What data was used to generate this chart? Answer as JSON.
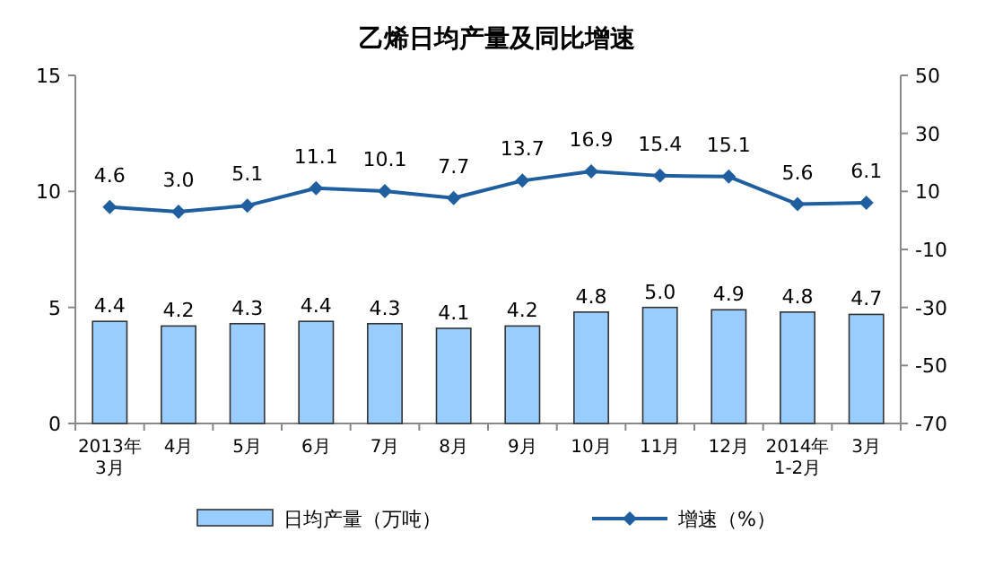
{
  "chart_data": {
    "type": "bar",
    "title": "乙烯日均产量及同比增速",
    "categories": [
      "2013年\n3月",
      "4月",
      "5月",
      "6月",
      "7月",
      "8月",
      "9月",
      "10月",
      "11月",
      "12月",
      "2014年\n1-2月",
      "3月"
    ],
    "series": [
      {
        "name": "日均产量（万吨）",
        "color": "#99ccff",
        "values": [
          4.4,
          4.2,
          4.3,
          4.4,
          4.3,
          4.1,
          4.2,
          4.8,
          5.0,
          4.9,
          4.8,
          4.7
        ],
        "value_labels": [
          "4.4",
          "4.2",
          "4.3",
          "4.4",
          "4.3",
          "4.1",
          "4.2",
          "4.8",
          "5.0",
          "4.9",
          "4.8",
          "4.7"
        ]
      },
      {
        "name": "增速（%）",
        "type": "line",
        "axis": "y2",
        "color": "#1f5fa0",
        "marker": "diamond",
        "values": [
          4.6,
          3.0,
          5.1,
          11.1,
          10.1,
          7.7,
          13.7,
          16.9,
          15.4,
          15.1,
          5.6,
          6.1
        ],
        "value_labels": [
          "4.6",
          "3.0",
          "5.1",
          "11.1",
          "10.1",
          "7.7",
          "13.7",
          "16.9",
          "15.4",
          "15.1",
          "5.6",
          "6.1"
        ]
      }
    ],
    "ylim": [
      0,
      15
    ],
    "yticks": [
      0,
      5,
      10,
      15
    ],
    "y2lim": [
      -70,
      50
    ],
    "y2ticks": [
      -70,
      -50,
      -30,
      -10,
      10,
      30,
      50
    ],
    "legend": "bottom"
  }
}
